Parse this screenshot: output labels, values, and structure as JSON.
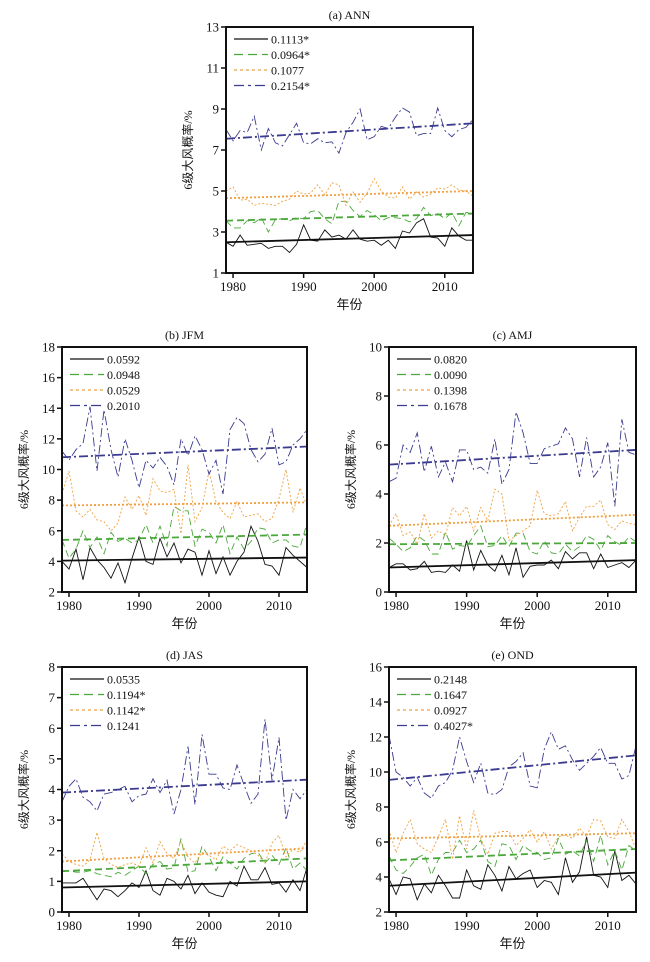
{
  "chart_data": [
    {
      "type": "line",
      "title": "(a) ANN",
      "xlabel": "年份",
      "ylabel": "6级大风概率/%",
      "xlim": [
        1979,
        2014
      ],
      "ylim": [
        1,
        13
      ],
      "yticks": [
        1,
        3,
        5,
        7,
        9,
        11,
        13
      ],
      "xticks": [
        1980,
        1990,
        2000,
        2010
      ],
      "x": [
        1979,
        1980,
        1981,
        1982,
        1983,
        1984,
        1985,
        1986,
        1987,
        1988,
        1989,
        1990,
        1991,
        1992,
        1993,
        1994,
        1995,
        1996,
        1997,
        1998,
        1999,
        2000,
        2001,
        2002,
        2003,
        2004,
        2005,
        2006,
        2007,
        2008,
        2009,
        2010,
        2011,
        2012,
        2013,
        2014
      ],
      "legend": "top-left",
      "series": [
        {
          "name": "0.1113*",
          "color": "#111111",
          "style": "solid",
          "trend": [
            2.5,
            2.85
          ],
          "values": [
            2.5,
            2.3,
            2.85,
            2.35,
            2.4,
            2.45,
            2.2,
            2.3,
            2.3,
            2.0,
            2.4,
            3.35,
            2.6,
            2.55,
            3.1,
            2.75,
            2.85,
            2.65,
            3.1,
            2.65,
            2.55,
            2.6,
            2.35,
            2.6,
            2.2,
            3.05,
            2.95,
            3.45,
            3.65,
            2.75,
            2.7,
            2.3,
            3.2,
            2.8,
            2.6,
            2.6
          ]
        },
        {
          "name": "0.0964*",
          "color": "#4aa83a",
          "style": "dashed",
          "trend": [
            3.55,
            3.9
          ],
          "values": [
            3.55,
            3.2,
            3.2,
            3.55,
            3.45,
            3.7,
            3.0,
            3.6,
            3.65,
            3.55,
            3.7,
            3.65,
            4.0,
            4.05,
            3.65,
            3.4,
            4.5,
            4.5,
            4.05,
            3.75,
            4.05,
            3.85,
            3.55,
            3.7,
            3.7,
            3.65,
            3.5,
            3.65,
            4.2,
            3.8,
            3.9,
            3.65,
            3.95,
            3.3,
            3.95,
            3.95
          ]
        },
        {
          "name": "0.1077",
          "color": "#f0a040",
          "style": "dotted",
          "trend": [
            4.65,
            5.0
          ],
          "values": [
            5.0,
            5.2,
            4.55,
            4.6,
            4.3,
            4.4,
            4.35,
            4.3,
            4.5,
            4.6,
            5.0,
            4.85,
            4.9,
            5.3,
            4.8,
            5.4,
            5.3,
            4.3,
            4.95,
            4.45,
            4.9,
            5.6,
            5.0,
            4.7,
            4.65,
            5.2,
            4.6,
            4.95,
            4.7,
            4.85,
            5.15,
            5.1,
            5.3,
            5.05,
            5.0,
            4.75
          ]
        },
        {
          "name": "0.2154*",
          "color": "#3b3b8f",
          "style": "dashdot",
          "trend": [
            7.55,
            8.3
          ],
          "values": [
            8.0,
            7.45,
            7.95,
            7.85,
            8.65,
            7.0,
            8.05,
            7.35,
            7.2,
            7.75,
            8.3,
            7.35,
            7.3,
            7.55,
            7.35,
            7.4,
            6.85,
            7.85,
            8.35,
            9.0,
            7.5,
            7.65,
            8.15,
            8.05,
            8.6,
            9.05,
            8.85,
            7.7,
            7.8,
            7.8,
            9.05,
            7.95,
            7.65,
            8.0,
            8.1,
            8.5
          ]
        }
      ]
    },
    {
      "type": "line",
      "title": "(b) JFM",
      "xlabel": "年份",
      "ylabel": "6级大风概率/%",
      "xlim": [
        1979,
        2014
      ],
      "ylim": [
        2,
        18
      ],
      "yticks": [
        2,
        4,
        6,
        8,
        10,
        12,
        14,
        16,
        18
      ],
      "xticks": [
        1980,
        1990,
        2000,
        2010
      ],
      "legend": "top-left",
      "series": [
        {
          "name": "0.0592",
          "color": "#111111",
          "style": "solid",
          "trend": [
            4.05,
            4.25
          ],
          "values": [
            4.0,
            3.5,
            4.8,
            2.8,
            4.9,
            4.1,
            3.6,
            2.9,
            3.9,
            2.6,
            4.2,
            5.6,
            4.0,
            3.8,
            5.5,
            4.3,
            5.2,
            3.9,
            4.8,
            4.6,
            3.1,
            4.7,
            3.2,
            4.3,
            3.1,
            4.0,
            4.6,
            6.3,
            5.3,
            3.8,
            3.7,
            3.1,
            4.9,
            4.4,
            4.0,
            3.6
          ]
        },
        {
          "name": "0.0948",
          "color": "#4aa83a",
          "style": "dashed",
          "trend": [
            5.4,
            5.75
          ],
          "values": [
            5.4,
            4.2,
            4.8,
            6.0,
            4.9,
            5.6,
            4.5,
            5.9,
            5.3,
            5.5,
            5.2,
            5.4,
            6.4,
            5.2,
            6.3,
            5.0,
            7.6,
            7.3,
            7.3,
            5.0,
            6.1,
            5.9,
            5.2,
            6.4,
            4.5,
            5.6,
            4.8,
            5.3,
            6.2,
            6.1,
            5.2,
            5.4,
            5.4,
            5.0,
            4.9,
            6.5
          ]
        },
        {
          "name": "0.0529",
          "color": "#f0a040",
          "style": "dotted",
          "trend": [
            7.65,
            7.85
          ],
          "values": [
            8.4,
            9.9,
            7.3,
            6.9,
            7.4,
            6.7,
            6.6,
            6.0,
            6.5,
            8.2,
            7.4,
            8.3,
            7.0,
            9.4,
            8.6,
            8.5,
            8.7,
            5.8,
            10.3,
            6.6,
            7.5,
            9.9,
            7.9,
            7.2,
            6.8,
            7.9,
            6.9,
            7.0,
            7.1,
            6.6,
            6.8,
            8.1,
            10.0,
            7.2,
            8.8,
            7.6
          ]
        },
        {
          "name": "0.2010",
          "color": "#3b3b8f",
          "style": "dashdot",
          "trend": [
            10.8,
            11.5
          ],
          "values": [
            11.2,
            10.6,
            11.3,
            11.7,
            14.1,
            9.9,
            13.9,
            11.3,
            9.5,
            12.0,
            10.6,
            8.8,
            10.6,
            10.1,
            10.8,
            10.2,
            9.0,
            12.0,
            10.9,
            12.2,
            11.3,
            9.7,
            10.6,
            8.4,
            12.6,
            13.4,
            13.0,
            11.3,
            10.5,
            11.0,
            12.7,
            10.3,
            10.5,
            11.6,
            12.0,
            12.6
          ]
        }
      ]
    },
    {
      "type": "line",
      "title": "(c) AMJ",
      "xlabel": "年份",
      "ylabel": "6级大风概率/%",
      "xlim": [
        1979,
        2014
      ],
      "ylim": [
        0,
        10
      ],
      "yticks": [
        0,
        2,
        4,
        6,
        8,
        10
      ],
      "xticks": [
        1980,
        1990,
        2000,
        2010
      ],
      "legend": "top-left",
      "series": [
        {
          "name": "0.0820",
          "color": "#111111",
          "style": "solid",
          "trend": [
            1.0,
            1.3
          ],
          "values": [
            1.0,
            1.15,
            1.15,
            0.9,
            0.95,
            1.25,
            0.8,
            0.85,
            0.8,
            1.1,
            0.85,
            2.1,
            0.9,
            1.7,
            1.1,
            0.85,
            1.5,
            0.7,
            1.8,
            0.6,
            1.05,
            1.1,
            1.1,
            1.3,
            0.95,
            1.65,
            1.35,
            1.6,
            1.6,
            0.95,
            1.55,
            1.0,
            1.1,
            1.2,
            1.0,
            1.3
          ]
        },
        {
          "name": "0.0090",
          "color": "#4aa83a",
          "style": "dashed",
          "trend": [
            1.95,
            2.0
          ],
          "values": [
            2.2,
            1.95,
            1.65,
            1.8,
            2.3,
            2.1,
            1.55,
            1.55,
            2.45,
            1.75,
            1.9,
            1.85,
            2.3,
            2.7,
            1.85,
            1.9,
            2.3,
            1.85,
            2.4,
            2.4,
            1.65,
            1.55,
            2.1,
            1.6,
            1.55,
            1.95,
            1.65,
            1.85,
            2.3,
            2.15,
            1.7,
            2.3,
            2.05,
            1.9,
            2.25,
            2.05
          ]
        },
        {
          "name": "0.1398",
          "color": "#f0a040",
          "style": "dotted",
          "trend": [
            2.7,
            3.15
          ],
          "values": [
            2.7,
            3.2,
            2.3,
            2.45,
            1.95,
            3.2,
            2.2,
            2.5,
            2.3,
            3.45,
            3.1,
            3.5,
            2.5,
            3.45,
            2.9,
            4.2,
            4.0,
            2.1,
            2.3,
            2.5,
            2.7,
            4.15,
            3.2,
            3.1,
            3.2,
            3.7,
            2.5,
            3.05,
            3.5,
            3.5,
            3.75,
            2.75,
            2.55,
            2.9,
            2.8,
            2.75
          ]
        },
        {
          "name": "0.1678",
          "color": "#3b3b8f",
          "style": "dashdot",
          "trend": [
            5.2,
            5.8
          ],
          "values": [
            4.5,
            4.65,
            6.0,
            5.7,
            6.5,
            4.9,
            5.95,
            4.7,
            5.3,
            4.5,
            5.8,
            5.8,
            5.0,
            5.1,
            4.85,
            6.25,
            4.4,
            5.0,
            7.35,
            6.5,
            5.25,
            5.25,
            5.85,
            5.95,
            6.05,
            6.7,
            6.25,
            4.7,
            6.3,
            4.7,
            5.1,
            6.1,
            3.5,
            7.05,
            5.7,
            5.6
          ]
        }
      ]
    },
    {
      "type": "line",
      "title": "(d) JAS",
      "xlabel": "年份",
      "ylabel": "6级大风概率/%",
      "xlim": [
        1979,
        2014
      ],
      "ylim": [
        0,
        8
      ],
      "yticks": [
        0,
        1,
        2,
        3,
        4,
        5,
        6,
        7,
        8
      ],
      "xticks": [
        1980,
        1990,
        2000,
        2010
      ],
      "legend": "top-left",
      "series": [
        {
          "name": "0.0535",
          "color": "#111111",
          "style": "solid",
          "trend": [
            0.8,
            1.0
          ],
          "values": [
            0.95,
            0.95,
            0.95,
            1.1,
            0.75,
            0.4,
            0.75,
            0.7,
            0.5,
            0.7,
            0.95,
            0.8,
            1.35,
            0.7,
            0.55,
            1.1,
            1.0,
            0.75,
            1.2,
            0.6,
            0.95,
            0.65,
            0.55,
            0.5,
            1.0,
            0.85,
            1.5,
            1.05,
            1.05,
            1.45,
            0.9,
            0.95,
            0.65,
            1.05,
            0.7,
            1.45
          ]
        },
        {
          "name": "0.1194*",
          "color": "#4aa83a",
          "style": "dashed",
          "trend": [
            1.33,
            1.75
          ],
          "values": [
            1.35,
            1.35,
            1.3,
            1.3,
            1.35,
            1.25,
            1.2,
            1.15,
            1.3,
            1.2,
            1.35,
            1.5,
            1.25,
            1.55,
            1.65,
            1.4,
            1.45,
            2.4,
            1.3,
            1.35,
            2.15,
            1.8,
            1.35,
            1.8,
            1.6,
            1.4,
            1.75,
            1.9,
            1.95,
            1.6,
            1.85,
            1.55,
            2.1,
            1.4,
            1.6,
            1.35
          ]
        },
        {
          "name": "0.1142*",
          "color": "#f0a040",
          "style": "dotted",
          "trend": [
            1.65,
            2.08
          ],
          "values": [
            1.9,
            1.65,
            1.55,
            1.5,
            1.7,
            2.6,
            1.75,
            1.55,
            1.45,
            1.55,
            1.6,
            1.5,
            2.1,
            1.6,
            2.3,
            1.9,
            1.75,
            2.3,
            1.8,
            1.6,
            1.95,
            1.85,
            1.7,
            2.15,
            2.0,
            2.2,
            2.1,
            2.0,
            1.85,
            1.6,
            2.25,
            2.5,
            1.8,
            2.05,
            1.95,
            2.35
          ]
        },
        {
          "name": "0.1241",
          "color": "#3b3b8f",
          "style": "dashdot",
          "trend": [
            3.9,
            4.32
          ],
          "values": [
            3.6,
            4.1,
            4.35,
            3.75,
            3.6,
            3.3,
            3.85,
            3.9,
            4.0,
            4.1,
            3.6,
            3.8,
            3.85,
            4.35,
            3.9,
            4.3,
            3.2,
            4.0,
            5.4,
            3.5,
            5.8,
            4.5,
            4.5,
            4.05,
            4.0,
            4.8,
            4.15,
            3.55,
            3.85,
            6.3,
            4.3,
            5.7,
            3.0,
            4.0,
            3.7,
            4.0
          ]
        }
      ]
    },
    {
      "type": "line",
      "title": "(e) OND",
      "xlabel": "年份",
      "ylabel": "6级大风概率/%",
      "xlim": [
        1979,
        2014
      ],
      "ylim": [
        2,
        16
      ],
      "yticks": [
        2,
        4,
        6,
        8,
        10,
        12,
        14,
        16
      ],
      "xticks": [
        1980,
        1990,
        2000,
        2010
      ],
      "legend": "top-left",
      "series": [
        {
          "name": "0.2148",
          "color": "#111111",
          "style": "solid",
          "trend": [
            3.5,
            4.25
          ],
          "values": [
            3.9,
            3.0,
            4.0,
            3.9,
            2.7,
            3.6,
            3.1,
            4.1,
            3.5,
            2.8,
            2.8,
            4.4,
            3.5,
            3.3,
            4.7,
            4.1,
            3.2,
            4.6,
            3.9,
            4.2,
            4.4,
            3.4,
            3.8,
            3.7,
            3.0,
            5.1,
            3.7,
            4.3,
            6.3,
            4.1,
            4.0,
            3.4,
            5.5,
            3.8,
            4.1,
            3.6
          ]
        },
        {
          "name": "0.1647",
          "color": "#4aa83a",
          "style": "dashed",
          "trend": [
            4.95,
            5.6
          ],
          "values": [
            5.2,
            4.4,
            4.2,
            4.6,
            5.1,
            5.3,
            4.1,
            5.0,
            5.4,
            5.4,
            6.1,
            5.4,
            5.6,
            6.1,
            4.9,
            4.6,
            5.9,
            5.8,
            5.0,
            5.8,
            5.5,
            5.4,
            5.0,
            5.1,
            6.2,
            5.3,
            5.5,
            5.2,
            6.1,
            4.9,
            6.4,
            4.7,
            5.5,
            4.4,
            5.8,
            5.5
          ]
        },
        {
          "name": "0.0927",
          "color": "#f0a040",
          "style": "dotted",
          "trend": [
            6.2,
            6.5
          ],
          "values": [
            6.7,
            5.4,
            6.5,
            7.3,
            5.9,
            5.6,
            5.4,
            6.3,
            7.3,
            5.0,
            7.5,
            5.6,
            7.8,
            6.2,
            5.3,
            6.5,
            6.6,
            6.6,
            5.8,
            6.2,
            6.7,
            6.0,
            6.6,
            5.6,
            6.3,
            6.4,
            6.2,
            6.8,
            6.3,
            7.3,
            7.2,
            6.3,
            6.2,
            7.3,
            6.6,
            5.6
          ]
        },
        {
          "name": "0.4027*",
          "color": "#3b3b8f",
          "style": "dashdot",
          "trend": [
            9.55,
            10.95
          ],
          "values": [
            12.1,
            10.0,
            9.7,
            9.2,
            9.7,
            8.8,
            8.5,
            9.2,
            9.4,
            10.1,
            12.0,
            10.6,
            9.4,
            10.5,
            8.8,
            8.7,
            9.0,
            10.3,
            10.6,
            11.1,
            9.2,
            9.1,
            11.3,
            12.3,
            11.3,
            11.5,
            10.7,
            10.1,
            10.5,
            10.9,
            11.4,
            10.5,
            10.5,
            9.6,
            9.8,
            11.5
          ]
        }
      ]
    }
  ],
  "panels_text": {
    "a": {
      "title": "(a) ANN"
    },
    "b": {
      "title": "(b) JFM"
    },
    "c": {
      "title": "(c) AMJ"
    },
    "d": {
      "title": "(d) JAS"
    },
    "e": {
      "title": "(e) OND"
    }
  }
}
